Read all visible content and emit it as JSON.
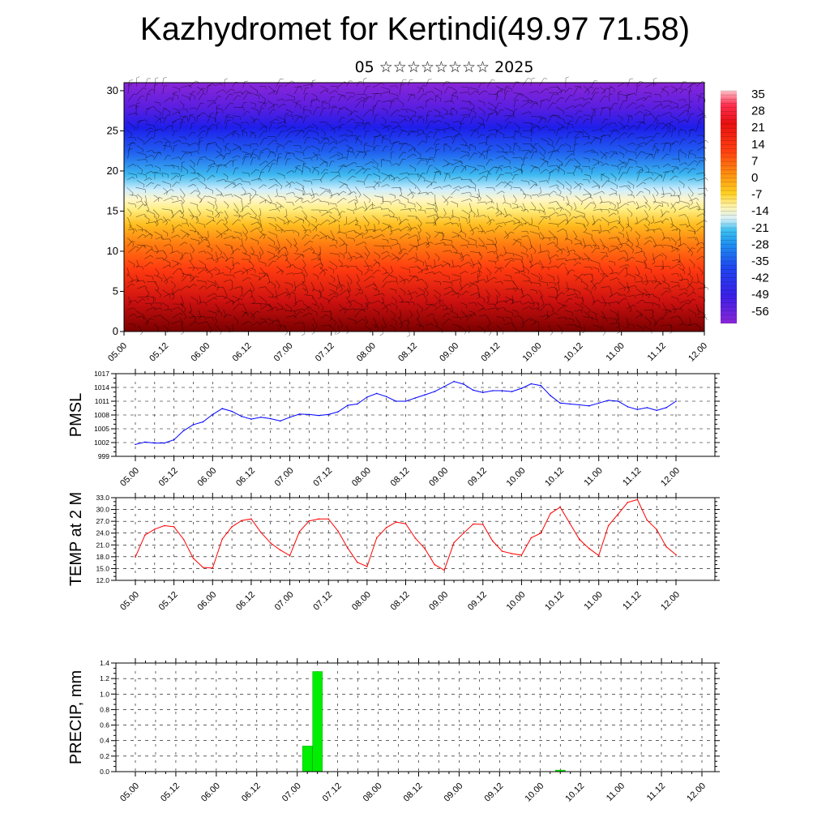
{
  "title": "Kazhydromet for Kertindi(49.97 71.58)",
  "subtitle": "05 ☆☆☆☆☆☆☆☆ 2025",
  "chart_data": [
    {
      "type": "heatmap",
      "panel": "cross-section",
      "y_ticks": [
        "0",
        "5",
        "10",
        "15",
        "20",
        "25",
        "30"
      ],
      "ylim": [
        0,
        31
      ],
      "x_ticks": [
        "05.00",
        "05.12",
        "06.00",
        "06.12",
        "07.00",
        "07.12",
        "08.00",
        "08.12",
        "09.00",
        "09.12",
        "10.00",
        "10.12",
        "11.00",
        "11.12",
        "12.00"
      ],
      "colorbar_labels": [
        "35",
        "28",
        "21",
        "14",
        "7",
        "0",
        "-7",
        "-14",
        "-21",
        "-28",
        "-35",
        "-42",
        "-49",
        "-56"
      ],
      "colorbar_range": [
        -60,
        37
      ],
      "overlay": "wind barbs"
    },
    {
      "type": "line",
      "panel": "pmsl",
      "ylabel": "PMSL",
      "y_ticks": [
        "999",
        "1002",
        "1005",
        "1008",
        "1011",
        "1014",
        "1017"
      ],
      "ylim": [
        999,
        1017
      ],
      "x_ticks": [
        "05.00",
        "05.12",
        "06.00",
        "06.12",
        "07.00",
        "07.12",
        "08.00",
        "08.12",
        "09.00",
        "09.12",
        "10.00",
        "10.12",
        "11.00",
        "11.12",
        "12.00"
      ],
      "color": "#0000ff",
      "values": [
        1001.6,
        1002.1,
        1001.9,
        1001.9,
        1002.6,
        1004.6,
        1005.9,
        1006.5,
        1008.1,
        1009.4,
        1008.8,
        1007.7,
        1007.1,
        1007.5,
        1007.2,
        1006.7,
        1007.5,
        1008.2,
        1008.1,
        1007.9,
        1008.1,
        1008.7,
        1010.1,
        1010.4,
        1011.9,
        1012.7,
        1012.0,
        1011.0,
        1011.0,
        1011.7,
        1012.4,
        1013.1,
        1014.2,
        1015.3,
        1014.7,
        1013.4,
        1012.9,
        1013.3,
        1013.3,
        1013.1,
        1013.8,
        1014.8,
        1014.4,
        1012.2,
        1010.6,
        1010.4,
        1010.2,
        1010.0,
        1010.6,
        1011.2,
        1011.0,
        1009.8,
        1009.2,
        1009.6,
        1009.0,
        1009.6,
        1011.0
      ]
    },
    {
      "type": "line",
      "panel": "temp",
      "ylabel": "TEMP at 2 M",
      "y_ticks": [
        "12.0",
        "15.0",
        "18.0",
        "21.0",
        "24.0",
        "27.0",
        "30.0",
        "33.0"
      ],
      "ylim": [
        12,
        33
      ],
      "x_ticks": [
        "05.00",
        "05.12",
        "06.00",
        "06.12",
        "07.00",
        "07.12",
        "08.00",
        "08.12",
        "09.00",
        "09.12",
        "10.00",
        "10.12",
        "11.00",
        "11.12",
        "12.00"
      ],
      "color": "#ff0000",
      "values": [
        17.9,
        23.5,
        25.0,
        25.9,
        25.6,
        22.4,
        17.6,
        15.3,
        15.1,
        22.5,
        25.6,
        27.2,
        27.6,
        24.2,
        21.5,
        19.7,
        18.3,
        24.4,
        27.1,
        27.6,
        27.6,
        24.5,
        20.2,
        16.6,
        15.5,
        22.8,
        25.4,
        26.8,
        26.4,
        22.7,
        20.0,
        16.0,
        14.6,
        21.6,
        24.0,
        26.3,
        26.2,
        22.0,
        19.4,
        18.8,
        18.4,
        22.8,
        24.0,
        29.0,
        30.6,
        26.5,
        22.4,
        20.1,
        18.3,
        25.9,
        28.8,
        31.8,
        32.5,
        27.3,
        24.9,
        20.5,
        18.5
      ]
    },
    {
      "type": "bar",
      "panel": "precip",
      "ylabel": "PRECIP, mm",
      "y_ticks": [
        "0.0",
        "0.2",
        "0.4",
        "0.6",
        "0.8",
        "1.0",
        "1.2",
        "1.4"
      ],
      "ylim": [
        0,
        1.4
      ],
      "x_ticks": [
        "05.00",
        "05.12",
        "06.00",
        "06.12",
        "07.00",
        "07.12",
        "08.00",
        "08.12",
        "09.00",
        "09.12",
        "10.00",
        "10.12",
        "11.00",
        "11.12",
        "12.00"
      ],
      "color": "#00ee00",
      "bars": [
        {
          "t": 51,
          "value": 0.33
        },
        {
          "t": 54,
          "value": 1.29
        },
        {
          "t": 126,
          "value": 0.02
        }
      ]
    }
  ]
}
